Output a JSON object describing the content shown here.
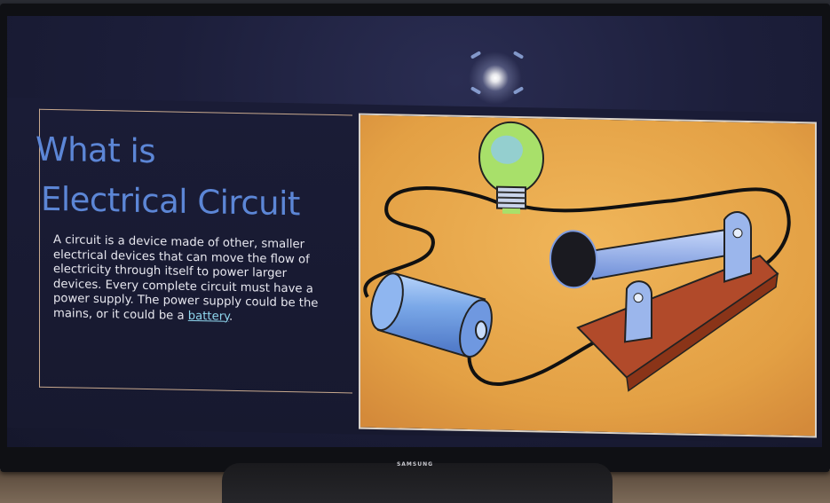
{
  "slide": {
    "title_line1": "What is",
    "title_line2": "Electrical Circuit",
    "body_main": "A circuit is a device made of other, smaller electrical devices that can move the flow of electricity through itself to power larger devices. Every complete circuit must have a power supply. The power supply could be the mains, or it could be a ",
    "body_link": "battery",
    "body_end": "."
  },
  "tv": {
    "brand": "SAMSUNG"
  },
  "colors": {
    "title": "#5c86d6",
    "slide_background": "#17192f",
    "panel_background": "#e4a64a",
    "bulb_glass": "#a8e06a",
    "battery": "#7aa8e8",
    "board": "#b14a2a"
  },
  "icons": [
    "light-bulb-icon",
    "battery-icon",
    "switch-icon",
    "wire-icon"
  ]
}
